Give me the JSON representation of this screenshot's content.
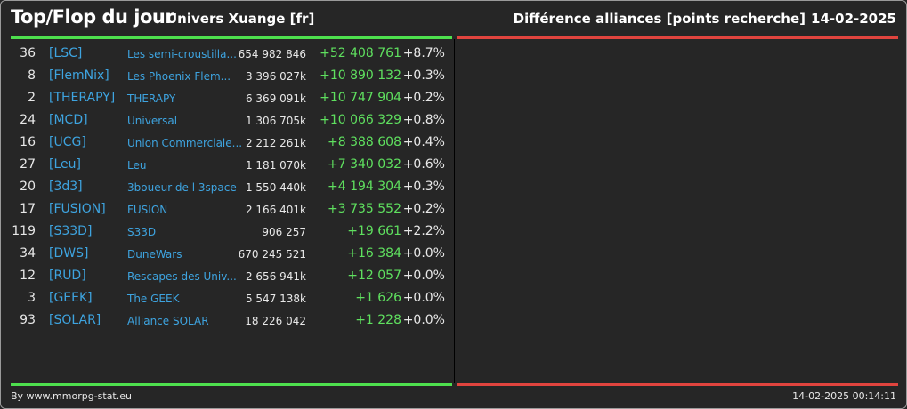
{
  "header": {
    "title": "Top/Flop du jour",
    "universe": "Univers Xuange [fr]",
    "category": "Différence alliances [points recherche]",
    "date": "14-02-2025"
  },
  "colors": {
    "top_line": "#4ee04e",
    "flop_line": "#e0443e"
  },
  "top_rows": [
    {
      "rank": "36",
      "tag": "[LSC]",
      "name": "Les semi-croustilla...",
      "points": "654 982 846",
      "diff": "+52 408 761",
      "pct": "+8.7%"
    },
    {
      "rank": "8",
      "tag": "[FlemNix]",
      "name": "Les Phoenix Flem...",
      "points": "3 396 027k",
      "diff": "+10 890 132",
      "pct": "+0.3%"
    },
    {
      "rank": "2",
      "tag": "[THERAPY]",
      "name": "THERAPY",
      "points": "6 369 091k",
      "diff": "+10 747 904",
      "pct": "+0.2%"
    },
    {
      "rank": "24",
      "tag": "[MCD]",
      "name": "Universal",
      "points": "1 306 705k",
      "diff": "+10 066 329",
      "pct": "+0.8%"
    },
    {
      "rank": "16",
      "tag": "[UCG]",
      "name": "Union Commerciale...",
      "points": "2 212 261k",
      "diff": "+8 388 608",
      "pct": "+0.4%"
    },
    {
      "rank": "27",
      "tag": "[Leu]",
      "name": "Leu",
      "points": "1 181 070k",
      "diff": "+7 340 032",
      "pct": "+0.6%"
    },
    {
      "rank": "20",
      "tag": "[3d3]",
      "name": "3boueur de l 3space",
      "points": "1 550 440k",
      "diff": "+4 194 304",
      "pct": "+0.3%"
    },
    {
      "rank": "17",
      "tag": "[FUSION]",
      "name": "FUSION",
      "points": "2 166 401k",
      "diff": "+3 735 552",
      "pct": "+0.2%"
    },
    {
      "rank": "119",
      "tag": "[S33D]",
      "name": "S33D",
      "points": "906 257",
      "diff": "+19 661",
      "pct": "+2.2%"
    },
    {
      "rank": "34",
      "tag": "[DWS]",
      "name": "DuneWars",
      "points": "670 245 521",
      "diff": "+16 384",
      "pct": "+0.0%"
    },
    {
      "rank": "12",
      "tag": "[RUD]",
      "name": "Rescapes des Univ...",
      "points": "2 656 941k",
      "diff": "+12 057",
      "pct": "+0.0%"
    },
    {
      "rank": "3",
      "tag": "[GEEK]",
      "name": "The GEEK",
      "points": "5 547 138k",
      "diff": "+1 626",
      "pct": "+0.0%"
    },
    {
      "rank": "93",
      "tag": "[SOLAR]",
      "name": "Alliance SOLAR",
      "points": "18 226 042",
      "diff": "+1 228",
      "pct": "+0.0%"
    }
  ],
  "footer": {
    "source": "By www.mmorpg-stat.eu",
    "timestamp": "14-02-2025 00:14:11"
  }
}
